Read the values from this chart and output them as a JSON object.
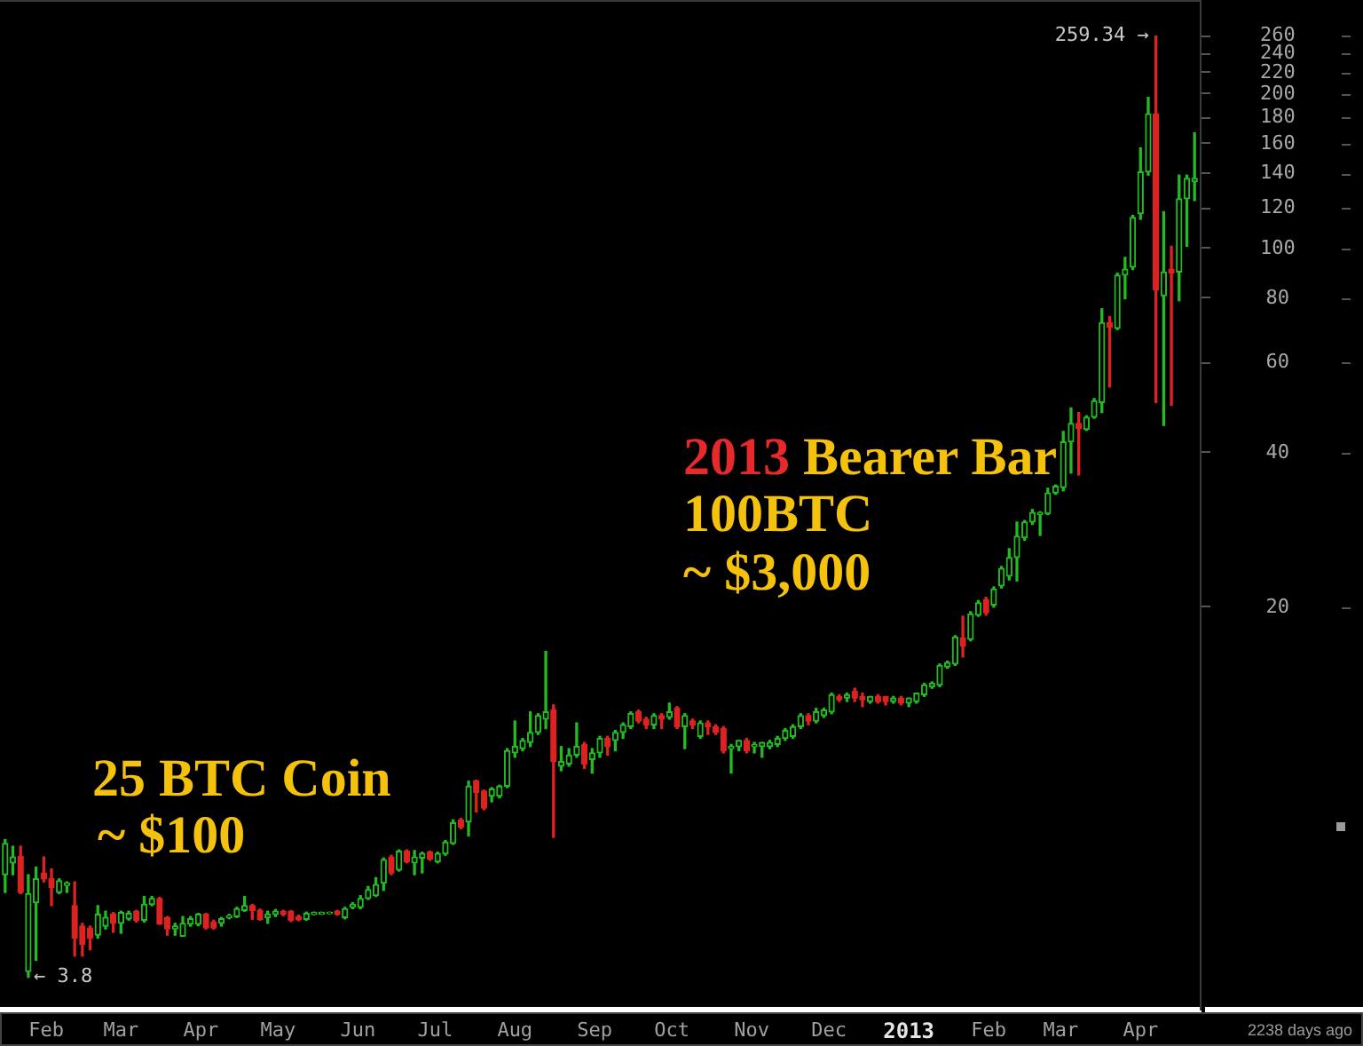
{
  "chart_data": {
    "type": "candlestick",
    "x": [
      "2012-01-16",
      "2012-01-19",
      "2012-01-22",
      "2012-01-25",
      "2012-01-28",
      "2012-01-31",
      "2012-02-03",
      "2012-02-06",
      "2012-02-09",
      "2012-02-12",
      "2012-02-15",
      "2012-02-18",
      "2012-02-21",
      "2012-02-24",
      "2012-02-27",
      "2012-03-01",
      "2012-03-04",
      "2012-03-07",
      "2012-03-10",
      "2012-03-13",
      "2012-03-16",
      "2012-03-19",
      "2012-03-22",
      "2012-03-25",
      "2012-03-28",
      "2012-03-31",
      "2012-04-03",
      "2012-04-06",
      "2012-04-09",
      "2012-04-12",
      "2012-04-15",
      "2012-04-18",
      "2012-04-21",
      "2012-04-24",
      "2012-04-27",
      "2012-04-30",
      "2012-05-03",
      "2012-05-06",
      "2012-05-09",
      "2012-05-12",
      "2012-05-15",
      "2012-05-18",
      "2012-05-21",
      "2012-05-24",
      "2012-05-27",
      "2012-05-30",
      "2012-06-02",
      "2012-06-05",
      "2012-06-08",
      "2012-06-11",
      "2012-06-14",
      "2012-06-17",
      "2012-06-20",
      "2012-06-23",
      "2012-06-26",
      "2012-06-29",
      "2012-07-02",
      "2012-07-05",
      "2012-07-08",
      "2012-07-11",
      "2012-07-14",
      "2012-07-17",
      "2012-07-20",
      "2012-07-23",
      "2012-07-26",
      "2012-07-29",
      "2012-08-01",
      "2012-08-04",
      "2012-08-07",
      "2012-08-10",
      "2012-08-13",
      "2012-08-16",
      "2012-08-19",
      "2012-08-22",
      "2012-08-25",
      "2012-08-28",
      "2012-08-31",
      "2012-09-03",
      "2012-09-06",
      "2012-09-09",
      "2012-09-12",
      "2012-09-15",
      "2012-09-18",
      "2012-09-21",
      "2012-09-24",
      "2012-09-27",
      "2012-09-30",
      "2012-10-03",
      "2012-10-06",
      "2012-10-09",
      "2012-10-12",
      "2012-10-15",
      "2012-10-18",
      "2012-10-21",
      "2012-10-24",
      "2012-10-27",
      "2012-10-30",
      "2012-11-02",
      "2012-11-05",
      "2012-11-08",
      "2012-11-11",
      "2012-11-14",
      "2012-11-17",
      "2012-11-20",
      "2012-11-23",
      "2012-11-26",
      "2012-11-29",
      "2012-12-02",
      "2012-12-05",
      "2012-12-08",
      "2012-12-11",
      "2012-12-14",
      "2012-12-17",
      "2012-12-20",
      "2012-12-23",
      "2012-12-26",
      "2012-12-29",
      "2013-01-01",
      "2013-01-04",
      "2013-01-07",
      "2013-01-10",
      "2013-01-13",
      "2013-01-16",
      "2013-01-19",
      "2013-01-22",
      "2013-01-25",
      "2013-01-28",
      "2013-01-31",
      "2013-02-03",
      "2013-02-06",
      "2013-02-09",
      "2013-02-12",
      "2013-02-15",
      "2013-02-18",
      "2013-02-21",
      "2013-02-24",
      "2013-02-27",
      "2013-03-02",
      "2013-03-05",
      "2013-03-08",
      "2013-03-11",
      "2013-03-14",
      "2013-03-17",
      "2013-03-20",
      "2013-03-23",
      "2013-03-26",
      "2013-03-29",
      "2013-04-01",
      "2013-04-04",
      "2013-04-07",
      "2013-04-10",
      "2013-04-13",
      "2013-04-16",
      "2013-04-19",
      "2013-04-22"
    ],
    "ohlc": [
      [
        6.02,
        7.05,
        5.56,
        6.93
      ],
      [
        6.35,
        6.84,
        6.02,
        6.52
      ],
      [
        6.54,
        6.84,
        5.53,
        5.56
      ],
      [
        3.9,
        6.02,
        3.8,
        5.53
      ],
      [
        5.31,
        6.23,
        4.1,
        5.91
      ],
      [
        6.07,
        6.52,
        5.83,
        5.91
      ],
      [
        5.91,
        6.18,
        5.24,
        5.68
      ],
      [
        5.56,
        5.91,
        5.53,
        5.86
      ],
      [
        5.74,
        5.83,
        5.56,
        5.8
      ],
      [
        5.24,
        5.83,
        4.18,
        4.53
      ],
      [
        4.78,
        4.84,
        4.18,
        4.41
      ],
      [
        4.74,
        4.78,
        4.3,
        4.53
      ],
      [
        4.59,
        5.24,
        4.53,
        5.04
      ],
      [
        4.78,
        5.11,
        4.72,
        4.97
      ],
      [
        5.04,
        5.08,
        4.65,
        4.84
      ],
      [
        4.84,
        5.11,
        4.63,
        5.08
      ],
      [
        4.94,
        5.11,
        4.91,
        5.06
      ],
      [
        5.11,
        5.13,
        4.87,
        4.91
      ],
      [
        4.91,
        5.46,
        4.87,
        5.27
      ],
      [
        5.27,
        5.46,
        5.24,
        5.41
      ],
      [
        5.41,
        5.44,
        4.82,
        4.82
      ],
      [
        4.97,
        4.99,
        4.59,
        4.72
      ],
      [
        4.72,
        4.84,
        4.59,
        4.78
      ],
      [
        4.57,
        4.99,
        4.57,
        4.84
      ],
      [
        4.82,
        4.99,
        4.78,
        4.94
      ],
      [
        4.82,
        5.06,
        4.79,
        5.04
      ],
      [
        5.04,
        5.06,
        4.72,
        4.74
      ],
      [
        4.87,
        4.91,
        4.72,
        4.74
      ],
      [
        4.84,
        4.97,
        4.78,
        4.94
      ],
      [
        4.97,
        5.04,
        4.94,
        5.01
      ],
      [
        4.99,
        5.2,
        4.97,
        5.17
      ],
      [
        5.13,
        5.46,
        5.11,
        5.24
      ],
      [
        5.24,
        5.27,
        4.93,
        5.13
      ],
      [
        5.13,
        5.16,
        4.91,
        4.93
      ],
      [
        4.97,
        5.11,
        4.84,
        5.04
      ],
      [
        5.04,
        5.15,
        4.99,
        5.11
      ],
      [
        5.11,
        5.13,
        5.01,
        5.04
      ],
      [
        5.11,
        5.12,
        4.88,
        4.91
      ],
      [
        4.99,
        5.02,
        4.9,
        4.92
      ],
      [
        4.93,
        5.09,
        4.91,
        5.06
      ],
      [
        5.04,
        5.09,
        5.03,
        5.08
      ],
      [
        5.05,
        5.09,
        5.04,
        5.08
      ],
      [
        5.06,
        5.09,
        5.05,
        5.08
      ],
      [
        5.11,
        5.13,
        5.02,
        5.04
      ],
      [
        4.97,
        5.2,
        4.94,
        5.17
      ],
      [
        5.2,
        5.31,
        5.17,
        5.27
      ],
      [
        5.2,
        5.48,
        5.17,
        5.41
      ],
      [
        5.41,
        5.71,
        5.39,
        5.63
      ],
      [
        5.48,
        5.94,
        5.46,
        5.76
      ],
      [
        5.8,
        6.49,
        5.61,
        6.44
      ],
      [
        6.52,
        6.57,
        6.02,
        6.07
      ],
      [
        6.15,
        6.73,
        6.12,
        6.69
      ],
      [
        6.69,
        6.73,
        6.35,
        6.38
      ],
      [
        6.35,
        6.71,
        6.02,
        6.52
      ],
      [
        6.49,
        6.66,
        6.07,
        6.62
      ],
      [
        6.66,
        6.69,
        6.42,
        6.46
      ],
      [
        6.38,
        6.66,
        6.35,
        6.62
      ],
      [
        6.61,
        7.02,
        6.57,
        6.97
      ],
      [
        6.93,
        7.7,
        6.9,
        7.6
      ],
      [
        7.7,
        7.75,
        7.4,
        7.46
      ],
      [
        7.63,
        9.16,
        7.17,
        8.96
      ],
      [
        9.16,
        9.2,
        7.98,
        8.7
      ],
      [
        8.76,
        8.8,
        8.06,
        8.12
      ],
      [
        8.57,
        8.9,
        8.35,
        8.84
      ],
      [
        8.57,
        9.0,
        8.5,
        8.96
      ],
      [
        8.96,
        10.6,
        8.9,
        10.5
      ],
      [
        10.4,
        12.0,
        10.2,
        10.7
      ],
      [
        10.6,
        11.1,
        10.5,
        11.0
      ],
      [
        10.9,
        12.5,
        10.7,
        11.4
      ],
      [
        11.4,
        12.4,
        11.3,
        12.3
      ],
      [
        12.1,
        16.4,
        11.6,
        12.5
      ],
      [
        12.6,
        12.9,
        7.12,
        10.0
      ],
      [
        9.8,
        10.7,
        9.6,
        10.0
      ],
      [
        9.9,
        10.6,
        9.8,
        10.3
      ],
      [
        10.3,
        11.9,
        10.2,
        10.7
      ],
      [
        10.8,
        10.9,
        9.7,
        9.9
      ],
      [
        10.1,
        10.6,
        9.5,
        10.4
      ],
      [
        10.4,
        11.2,
        10.2,
        11.1
      ],
      [
        11.1,
        11.2,
        10.3,
        10.7
      ],
      [
        11.0,
        11.5,
        10.5,
        11.4
      ],
      [
        11.4,
        11.9,
        11.1,
        11.8
      ],
      [
        11.7,
        12.5,
        11.6,
        12.4
      ],
      [
        12.5,
        12.6,
        11.9,
        12.0
      ],
      [
        12.1,
        12.2,
        11.6,
        11.8
      ],
      [
        11.8,
        12.4,
        11.6,
        12.3
      ],
      [
        12.3,
        12.4,
        11.6,
        12.1
      ],
      [
        12.2,
        13.0,
        12.1,
        12.5
      ],
      [
        12.7,
        12.8,
        11.6,
        11.7
      ],
      [
        11.7,
        12.4,
        10.6,
        12.3
      ],
      [
        12.0,
        12.1,
        11.6,
        11.8
      ],
      [
        11.2,
        12.0,
        11.1,
        11.9
      ],
      [
        11.9,
        12.0,
        11.3,
        11.7
      ],
      [
        11.7,
        11.8,
        11.3,
        11.4
      ],
      [
        11.6,
        11.7,
        10.4,
        10.5
      ],
      [
        10.6,
        10.8,
        9.5,
        10.7
      ],
      [
        10.7,
        11.0,
        10.5,
        11.0
      ],
      [
        11.0,
        11.1,
        10.4,
        10.5
      ],
      [
        10.7,
        10.9,
        10.4,
        10.8
      ],
      [
        10.7,
        10.9,
        10.2,
        10.9
      ],
      [
        10.7,
        11.0,
        10.6,
        10.9
      ],
      [
        10.8,
        11.2,
        10.7,
        11.1
      ],
      [
        11.1,
        11.6,
        11.0,
        11.5
      ],
      [
        11.2,
        11.8,
        11.1,
        11.7
      ],
      [
        11.7,
        12.4,
        11.6,
        12.3
      ],
      [
        12.3,
        12.4,
        11.8,
        12.0
      ],
      [
        12.0,
        12.7,
        11.9,
        12.5
      ],
      [
        12.3,
        12.7,
        12.2,
        12.6
      ],
      [
        12.5,
        13.6,
        12.4,
        13.5
      ],
      [
        13.4,
        13.5,
        13.1,
        13.2
      ],
      [
        13.3,
        13.6,
        13.1,
        13.5
      ],
      [
        13.7,
        13.9,
        13.1,
        13.3
      ],
      [
        13.4,
        13.6,
        12.8,
        13.2
      ],
      [
        13.1,
        13.4,
        13.0,
        13.4
      ],
      [
        13.4,
        13.5,
        13.0,
        13.1
      ],
      [
        13.4,
        13.4,
        12.9,
        13.1
      ],
      [
        13.1,
        13.4,
        13.0,
        13.3
      ],
      [
        13.3,
        13.4,
        12.9,
        13.0
      ],
      [
        13.0,
        13.3,
        12.8,
        13.3
      ],
      [
        13.1,
        13.6,
        13.0,
        13.6
      ],
      [
        13.5,
        14.2,
        13.4,
        14.1
      ],
      [
        14.0,
        14.3,
        13.9,
        14.2
      ],
      [
        14.1,
        15.5,
        14.0,
        15.4
      ],
      [
        15.3,
        15.7,
        15.2,
        15.6
      ],
      [
        15.5,
        17.6,
        15.4,
        17.5
      ],
      [
        17.4,
        19.2,
        16.0,
        16.8
      ],
      [
        17.3,
        19.6,
        17.2,
        19.4
      ],
      [
        19.3,
        20.6,
        19.2,
        20.4
      ],
      [
        20.7,
        20.9,
        19.3,
        19.5
      ],
      [
        20.2,
        21.9,
        20.0,
        21.7
      ],
      [
        22.0,
        24.0,
        21.8,
        23.8
      ],
      [
        23.0,
        26.0,
        22.6,
        25.0
      ],
      [
        25.0,
        29.3,
        22.5,
        27.5
      ],
      [
        27.3,
        29.5,
        27.0,
        29.3
      ],
      [
        29.3,
        31.0,
        29.0,
        30.6
      ],
      [
        30.3,
        30.7,
        27.6,
        30.6
      ],
      [
        30.4,
        34.1,
        30.3,
        33.4
      ],
      [
        33.4,
        34.6,
        33.2,
        34.4
      ],
      [
        34.2,
        44.0,
        33.7,
        42.0
      ],
      [
        42.0,
        48.9,
        36.5,
        45.6
      ],
      [
        45.6,
        47.9,
        36.2,
        44.6
      ],
      [
        44.4,
        47.2,
        44.2,
        46.9
      ],
      [
        46.9,
        51.0,
        46.7,
        50.5
      ],
      [
        50.1,
        76.3,
        47.9,
        71.7
      ],
      [
        71.7,
        73.7,
        53.7,
        70.3
      ],
      [
        69.9,
        89.5,
        69.5,
        88.7
      ],
      [
        88.7,
        96.1,
        79.8,
        91.1
      ],
      [
        92,
        116,
        91,
        115
      ],
      [
        117,
        157,
        114,
        141
      ],
      [
        141,
        197,
        139,
        183
      ],
      [
        183,
        259.34,
        50.1,
        83.1
      ],
      [
        80.9,
        118,
        45.2,
        90.0
      ],
      [
        91.1,
        101,
        49.5,
        89.5
      ],
      [
        90,
        139,
        79.1,
        125
      ],
      [
        125,
        139,
        101,
        137
      ],
      [
        135,
        168,
        124,
        137
      ]
    ],
    "colors": [
      "#22bb22",
      "#22bb22",
      "#dd2222",
      "#22bb22",
      "#22bb22",
      "#dd2222",
      "#dd2222",
      "#22bb22",
      "#22bb22",
      "#dd2222",
      "#dd2222",
      "#dd2222",
      "#22bb22",
      "#22bb22",
      "#dd2222",
      "#22bb22",
      "#22bb22",
      "#dd2222",
      "#22bb22",
      "#22bb22",
      "#dd2222",
      "#dd2222",
      "#22bb22",
      "#22bb22",
      "#22bb22",
      "#22bb22",
      "#dd2222",
      "#dd2222",
      "#22bb22",
      "#22bb22",
      "#22bb22",
      "#22bb22",
      "#dd2222",
      "#dd2222",
      "#22bb22",
      "#22bb22",
      "#dd2222",
      "#dd2222",
      "#dd2222",
      "#22bb22",
      "#22bb22",
      "#22bb22",
      "#22bb22",
      "#dd2222",
      "#22bb22",
      "#22bb22",
      "#22bb22",
      "#22bb22",
      "#22bb22",
      "#22bb22",
      "#dd2222",
      "#22bb22",
      "#dd2222",
      "#22bb22",
      "#22bb22",
      "#dd2222",
      "#22bb22",
      "#22bb22",
      "#22bb22",
      "#dd2222",
      "#22bb22",
      "#dd2222",
      "#dd2222",
      "#22bb22",
      "#22bb22",
      "#22bb22",
      "#22bb22",
      "#22bb22",
      "#22bb22",
      "#22bb22",
      "#22bb22",
      "#dd2222",
      "#22bb22",
      "#22bb22",
      "#22bb22",
      "#dd2222",
      "#22bb22",
      "#22bb22",
      "#dd2222",
      "#22bb22",
      "#22bb22",
      "#22bb22",
      "#dd2222",
      "#dd2222",
      "#22bb22",
      "#dd2222",
      "#22bb22",
      "#dd2222",
      "#22bb22",
      "#dd2222",
      "#22bb22",
      "#dd2222",
      "#dd2222",
      "#dd2222",
      "#22bb22",
      "#22bb22",
      "#dd2222",
      "#22bb22",
      "#22bb22",
      "#22bb22",
      "#22bb22",
      "#22bb22",
      "#22bb22",
      "#22bb22",
      "#dd2222",
      "#22bb22",
      "#22bb22",
      "#22bb22",
      "#dd2222",
      "#22bb22",
      "#dd2222",
      "#dd2222",
      "#22bb22",
      "#dd2222",
      "#dd2222",
      "#22bb22",
      "#dd2222",
      "#22bb22",
      "#22bb22",
      "#22bb22",
      "#22bb22",
      "#22bb22",
      "#22bb22",
      "#22bb22",
      "#dd2222",
      "#22bb22",
      "#22bb22",
      "#dd2222",
      "#22bb22",
      "#22bb22",
      "#22bb22",
      "#22bb22",
      "#22bb22",
      "#22bb22",
      "#22bb22",
      "#22bb22",
      "#22bb22",
      "#22bb22",
      "#22bb22",
      "#dd2222",
      "#22bb22",
      "#22bb22",
      "#22bb22",
      "#dd2222",
      "#22bb22",
      "#22bb22",
      "#22bb22",
      "#22bb22",
      "#22bb22",
      "#dd2222",
      "#22bb22",
      "#dd2222",
      "#22bb22",
      "#22bb22",
      "#22bb22"
    ],
    "xlim": [
      "2012-01-14",
      "2013-04-24"
    ],
    "xticks": [
      {
        "value": "2012-02-01",
        "label": "Feb"
      },
      {
        "value": "2012-03-01",
        "label": "Mar"
      },
      {
        "value": "2012-04-01",
        "label": "Apr"
      },
      {
        "value": "2012-05-01",
        "label": "May"
      },
      {
        "value": "2012-06-01",
        "label": "Jun"
      },
      {
        "value": "2012-07-01",
        "label": "Jul"
      },
      {
        "value": "2012-08-01",
        "label": "Aug"
      },
      {
        "value": "2012-09-01",
        "label": "Sep"
      },
      {
        "value": "2012-10-01",
        "label": "Oct"
      },
      {
        "value": "2012-11-01",
        "label": "Nov"
      },
      {
        "value": "2012-12-01",
        "label": "Dec"
      },
      {
        "value": "2013-01-01",
        "label": "2013"
      },
      {
        "value": "2013-02-01",
        "label": "Feb"
      },
      {
        "value": "2013-03-01",
        "label": "Mar"
      },
      {
        "value": "2013-04-01",
        "label": "Apr"
      }
    ],
    "ylim": [
      3.3,
      305
    ],
    "yticks": [
      20,
      40,
      60,
      80,
      100,
      120,
      140,
      160,
      180,
      200,
      220,
      240,
      260
    ],
    "log": true,
    "annotations": [
      "25 BTC Coin",
      "~ $100",
      "2013",
      "Bearer Bar",
      "100BTC",
      "~ $3,000",
      "2238 days ago",
      {
        "text": "259.34 →",
        "x": "2013-04-07",
        "y": 259.34
      },
      {
        "text": "← 3.8",
        "x": "2012-01-25",
        "y": 3.8
      }
    ]
  }
}
